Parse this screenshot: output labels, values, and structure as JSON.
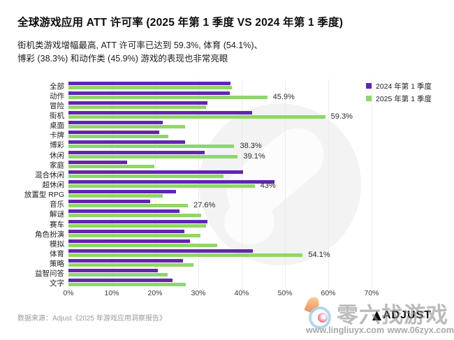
{
  "header": {
    "title": "全球游戏应用 ATT 许可率 (2025 年第 1 季度 VS 2024 年第 1 季度)",
    "subtitle_line1": "街机类游戏增幅最高, ATT 许可率已达到 59.3%, 体育 (54.1%)、",
    "subtitle_line2": "博彩 (38.3%) 和动作类 (45.9%) 游戏的表现也非常亮眼"
  },
  "legend": {
    "items": [
      {
        "label": "2024 年第 1 季度",
        "color": "#6225b0"
      },
      {
        "label": "2025 年第 1 季度",
        "color": "#8fd768"
      }
    ],
    "position": "top-right"
  },
  "chart_data": {
    "type": "bar",
    "orientation": "horizontal",
    "title": "全球游戏应用 ATT 许可率 (2025 年第 1 季度 VS 2024 年第 1 季度)",
    "categories": [
      "全部",
      "动作",
      "冒险",
      "街机",
      "桌面",
      "卡牌",
      "博彩",
      "休闲",
      "家庭",
      "混合休闲",
      "超休闲",
      "放置型 RPG",
      "音乐",
      "解谜",
      "赛车",
      "角色扮演",
      "模拟",
      "体育",
      "策略",
      "益智问答",
      "文字"
    ],
    "series": [
      {
        "name": "2024 年第 1 季度",
        "color": "#6225b0",
        "values": [
          37.4,
          37.2,
          32.1,
          42.4,
          21.7,
          21.0,
          27.0,
          31.4,
          13.5,
          40.4,
          47.6,
          24.9,
          18.9,
          25.7,
          32.1,
          26.8,
          28.1,
          42.6,
          26.5,
          20.6,
          24.1
        ]
      },
      {
        "name": "2025 年第 1 季度",
        "color": "#8fd768",
        "values": [
          37.7,
          45.9,
          31.8,
          59.3,
          26.9,
          23.0,
          38.3,
          39.1,
          19.9,
          35.8,
          43.0,
          21.7,
          27.6,
          30.7,
          31.8,
          30.5,
          34.4,
          54.1,
          28.9,
          22.9,
          27.1
        ]
      }
    ],
    "annotations": [
      "",
      "45.9%",
      "",
      "59.3%",
      "",
      "",
      "38.3%",
      "39.1%",
      "",
      "",
      "43%",
      "",
      "27.6%",
      "",
      "",
      "",
      "",
      "54.1%",
      "",
      "",
      ""
    ],
    "x_ticks": [
      "0%",
      "10%",
      "20%",
      "30%",
      "40%",
      "50%",
      "60%",
      "70%"
    ],
    "xlabel": "",
    "ylabel": "",
    "xlim": [
      0,
      70
    ],
    "grid": true,
    "legend_position": "top-right"
  },
  "footer": {
    "source": "数据来源：Adjust《2025 年游戏应用洞察报告》",
    "brand": "ADJUST"
  },
  "watermark": {
    "brand_text": "零六找游戏",
    "url_left": "www.lingliuyx.com",
    "url_right": "www.06zyx.com"
  }
}
